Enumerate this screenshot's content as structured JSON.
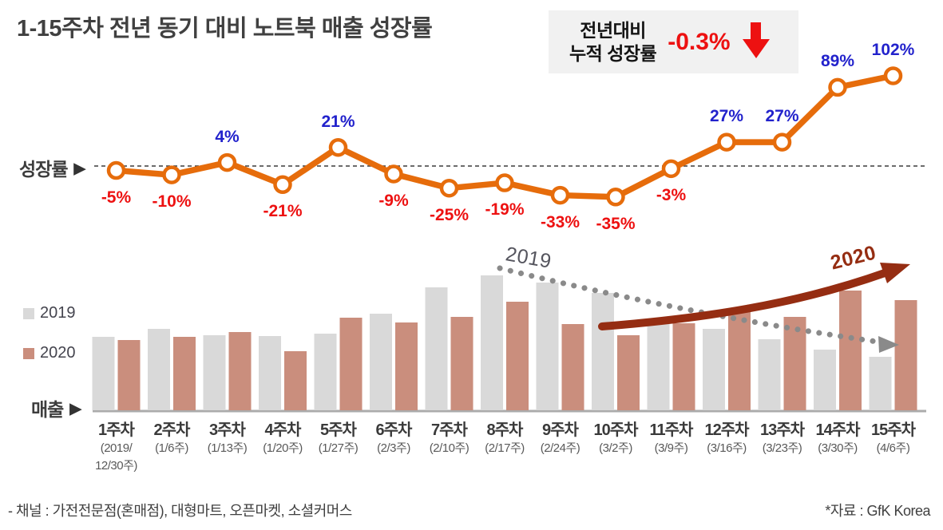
{
  "title": "1-15주차 전년 동기 대비 노트북 매출 성장률",
  "summary_box": {
    "label": "전년대비\n누적 성장률",
    "value": "-0.3%",
    "value_color": "#ed1111",
    "arrow_icon": "red-down-arrow",
    "bg_color": "#f1f1f1"
  },
  "axis_labels": {
    "growth": "성장률",
    "sales": "매출",
    "pointer_icon": "right-triangle"
  },
  "legend": [
    {
      "label": "2019",
      "color": "#d9d9d9"
    },
    {
      "label": "2020",
      "color": "#ca8e7d"
    }
  ],
  "annotations": {
    "down_trend_label": "2019",
    "down_trend_style": "gray dotted arrow, declining left-to-right",
    "up_trend_label": "2020",
    "up_trend_style": "dark red solid curved arrow, rising left-to-right",
    "up_trend_color": "#952d12",
    "down_trend_color": "#8a8a8a"
  },
  "footer": {
    "left": "- 채널 : 가전전문점(혼매점), 대형마트, 오픈마켓, 소셜커머스",
    "right": "*자료 : GfK Korea"
  },
  "chart_data": [
    {
      "type": "line",
      "name": "yoy-growth-rate",
      "title": "성장률 (전년 동기 대비)",
      "categories": [
        "1주차",
        "2주차",
        "3주차",
        "4주차",
        "5주차",
        "6주차",
        "7주차",
        "8주차",
        "9주차",
        "10주차",
        "11주차",
        "12주차",
        "13주차",
        "14주차",
        "15주차"
      ],
      "values": [
        -5,
        -10,
        4,
        -21,
        21,
        -9,
        -25,
        -19,
        -33,
        -35,
        -3,
        27,
        27,
        89,
        102
      ],
      "labels": [
        "-5%",
        "-10%",
        "4%",
        "-21%",
        "21%",
        "-9%",
        "-25%",
        "-19%",
        "-33%",
        "-35%",
        "-3%",
        "27%",
        "27%",
        "89%",
        "102%"
      ],
      "unit": "%",
      "line_color": "#e66c0b",
      "marker": "white circle with orange ring",
      "zero_line": "black dashed",
      "positive_label_color": "#2222cc",
      "negative_label_color": "#ed1111"
    },
    {
      "type": "bar",
      "name": "weekly-sales",
      "title": "매출 (주차별, 2019 vs 2020)",
      "categories": [
        "1주차",
        "2주차",
        "3주차",
        "4주차",
        "5주차",
        "6주차",
        "7주차",
        "8주차",
        "9주차",
        "10주차",
        "11주차",
        "12주차",
        "13주차",
        "14주차",
        "15주차"
      ],
      "date_labels": [
        "(2019/\n12/30주)",
        "(1/6주)",
        "(1/13주)",
        "(1/20주)",
        "(1/27주)",
        "(2/3주)",
        "(2/10주)",
        "(2/17주)",
        "(2/24주)",
        "(3/2주)",
        "(3/9주)",
        "(3/16주)",
        "(3/23주)",
        "(3/30주)",
        "(4/6주)"
      ],
      "series": [
        {
          "name": "2019",
          "color": "#d9d9d9",
          "values": [
            92,
            102,
            94,
            93,
            96,
            121,
            154,
            169,
            160,
            147,
            112,
            102,
            89,
            76,
            67
          ]
        },
        {
          "name": "2020",
          "color": "#ca8e7d",
          "values": [
            88,
            92,
            98,
            74,
            116,
            110,
            117,
            136,
            108,
            94,
            109,
            124,
            117,
            150,
            138
          ]
        }
      ],
      "unit": "relative sales index (y-axis unlabeled)",
      "ylim": [
        0,
        180
      ],
      "grid": false,
      "legend_position": "left"
    }
  ]
}
